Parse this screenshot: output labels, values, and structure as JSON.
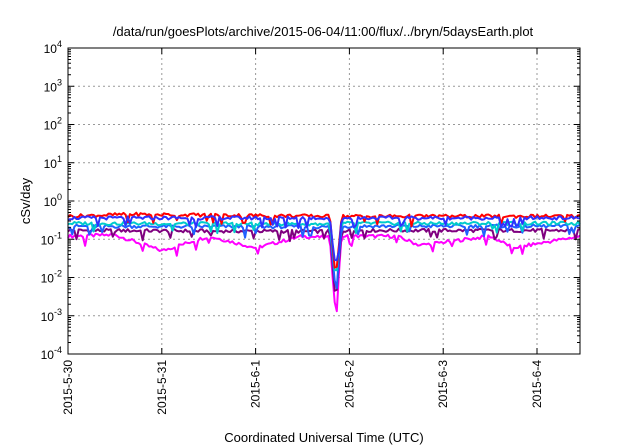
{
  "chart_data": {
    "type": "line",
    "title": "/data/run/goesPlots/archive/2015-06-04/11:00/flux/../bryn/5daysEarth.plot",
    "xlabel": "Coordinated Universal Time (UTC)",
    "ylabel": "cSv/day",
    "y_scale": "log",
    "ylim": [
      0.0001,
      10000
    ],
    "y_ticks": [
      {
        "value": 0.0001,
        "base": "10",
        "exp": "-4"
      },
      {
        "value": 0.001,
        "base": "10",
        "exp": "-3"
      },
      {
        "value": 0.01,
        "base": "10",
        "exp": "-2"
      },
      {
        "value": 0.1,
        "base": "10",
        "exp": "-1"
      },
      {
        "value": 1,
        "base": "10",
        "exp": "0"
      },
      {
        "value": 10,
        "base": "10",
        "exp": "1"
      },
      {
        "value": 100,
        "base": "10",
        "exp": "2"
      },
      {
        "value": 1000,
        "base": "10",
        "exp": "3"
      },
      {
        "value": 10000,
        "base": "10",
        "exp": "4"
      }
    ],
    "x_ticks": [
      "2015-5-30",
      "2015-5-31",
      "2015-6-1",
      "2015-6-2",
      "2015-6-3",
      "2015-6-4"
    ],
    "x_range": [
      "2015-05-30 00:00",
      "2015-06-04 11:00"
    ],
    "grid": true,
    "legend": "none",
    "series": [
      {
        "color": "#ff00ff",
        "level": 0.12,
        "points": [
          [
            "2015-05-30 00:00",
            0.12
          ],
          [
            "2015-05-30 12:00",
            0.13
          ],
          [
            "2015-05-31 00:00",
            0.05
          ],
          [
            "2015-05-31 12:00",
            0.12
          ],
          [
            "2015-06-01 00:00",
            0.06
          ],
          [
            "2015-06-01 12:00",
            0.12
          ],
          [
            "2015-06-01 19:00",
            0.11
          ],
          [
            "2015-06-01 20:30",
            0.0009
          ],
          [
            "2015-06-01 22:00",
            0.12
          ],
          [
            "2015-06-02 12:00",
            0.12
          ],
          [
            "2015-06-02 18:00",
            0.07
          ],
          [
            "2015-06-03 12:00",
            0.12
          ],
          [
            "2015-06-03 18:00",
            0.06
          ],
          [
            "2015-06-04 11:00",
            0.12
          ]
        ]
      },
      {
        "color": "#7f007f",
        "level": 0.17,
        "points": [
          [
            "2015-05-30 00:00",
            0.17
          ],
          [
            "2015-06-01 19:00",
            0.16
          ],
          [
            "2015-06-01 20:30",
            0.002
          ],
          [
            "2015-06-01 22:00",
            0.17
          ],
          [
            "2015-06-04 11:00",
            0.17
          ]
        ]
      },
      {
        "color": "#2060ff",
        "level": 0.22,
        "points": [
          [
            "2015-05-30 00:00",
            0.22
          ],
          [
            "2015-06-01 19:00",
            0.21
          ],
          [
            "2015-06-01 20:30",
            0.004
          ],
          [
            "2015-06-01 22:00",
            0.22
          ],
          [
            "2015-06-04 11:00",
            0.22
          ]
        ]
      },
      {
        "color": "#00cccc",
        "level": 0.26,
        "points": [
          [
            "2015-05-30 00:00",
            0.26
          ],
          [
            "2015-06-01 19:00",
            0.25
          ],
          [
            "2015-06-01 20:30",
            0.008
          ],
          [
            "2015-06-01 22:00",
            0.26
          ],
          [
            "2015-06-04 11:00",
            0.26
          ]
        ]
      },
      {
        "color": "#ff0000",
        "level": 0.4,
        "points": [
          [
            "2015-05-30 00:00",
            0.4
          ],
          [
            "2015-05-30 16:00",
            0.45
          ],
          [
            "2015-06-01 19:00",
            0.4
          ],
          [
            "2015-06-01 20:30",
            0.01
          ],
          [
            "2015-06-01 22:00",
            0.4
          ],
          [
            "2015-06-04 11:00",
            0.4
          ]
        ]
      },
      {
        "color": "#3030ff",
        "level": 0.36,
        "points": [
          [
            "2015-05-30 00:00",
            0.36
          ],
          [
            "2015-06-01 19:00",
            0.36
          ],
          [
            "2015-06-01 20:30",
            0.015
          ],
          [
            "2015-06-01 22:00",
            0.36
          ],
          [
            "2015-06-04 11:00",
            0.36
          ]
        ]
      }
    ]
  }
}
